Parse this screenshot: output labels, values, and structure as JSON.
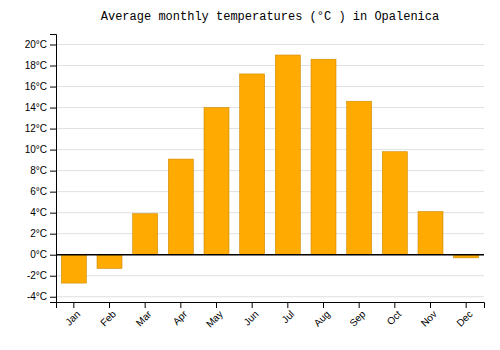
{
  "chart_data": {
    "type": "bar",
    "title": "Average monthly temperatures (°C ) in Opalenica",
    "categories": [
      "Jan",
      "Feb",
      "Mar",
      "Apr",
      "May",
      "Jun",
      "Jul",
      "Aug",
      "Sep",
      "Oct",
      "Nov",
      "Dec"
    ],
    "values": [
      -2.7,
      -1.3,
      3.9,
      9.1,
      14.0,
      17.2,
      19.0,
      18.6,
      14.6,
      9.8,
      4.1,
      -0.3
    ],
    "color": "#FFAA00",
    "ylim": [
      -4.5,
      21
    ],
    "yticks": [
      {
        "value": -4,
        "label": "-4°C"
      },
      {
        "value": -2,
        "label": "-2°C"
      },
      {
        "value": 0,
        "label": "0°C"
      },
      {
        "value": 2,
        "label": "2°C"
      },
      {
        "value": 4,
        "label": "4°C"
      },
      {
        "value": 6,
        "label": "6°C"
      },
      {
        "value": 8,
        "label": "8°C"
      },
      {
        "value": 10,
        "label": "10°C"
      },
      {
        "value": 12,
        "label": "12°C"
      },
      {
        "value": 14,
        "label": "14°C"
      },
      {
        "value": 16,
        "label": "16°C"
      },
      {
        "value": 18,
        "label": "18°C"
      },
      {
        "value": 20,
        "label": "20°C"
      }
    ],
    "grid": true
  }
}
